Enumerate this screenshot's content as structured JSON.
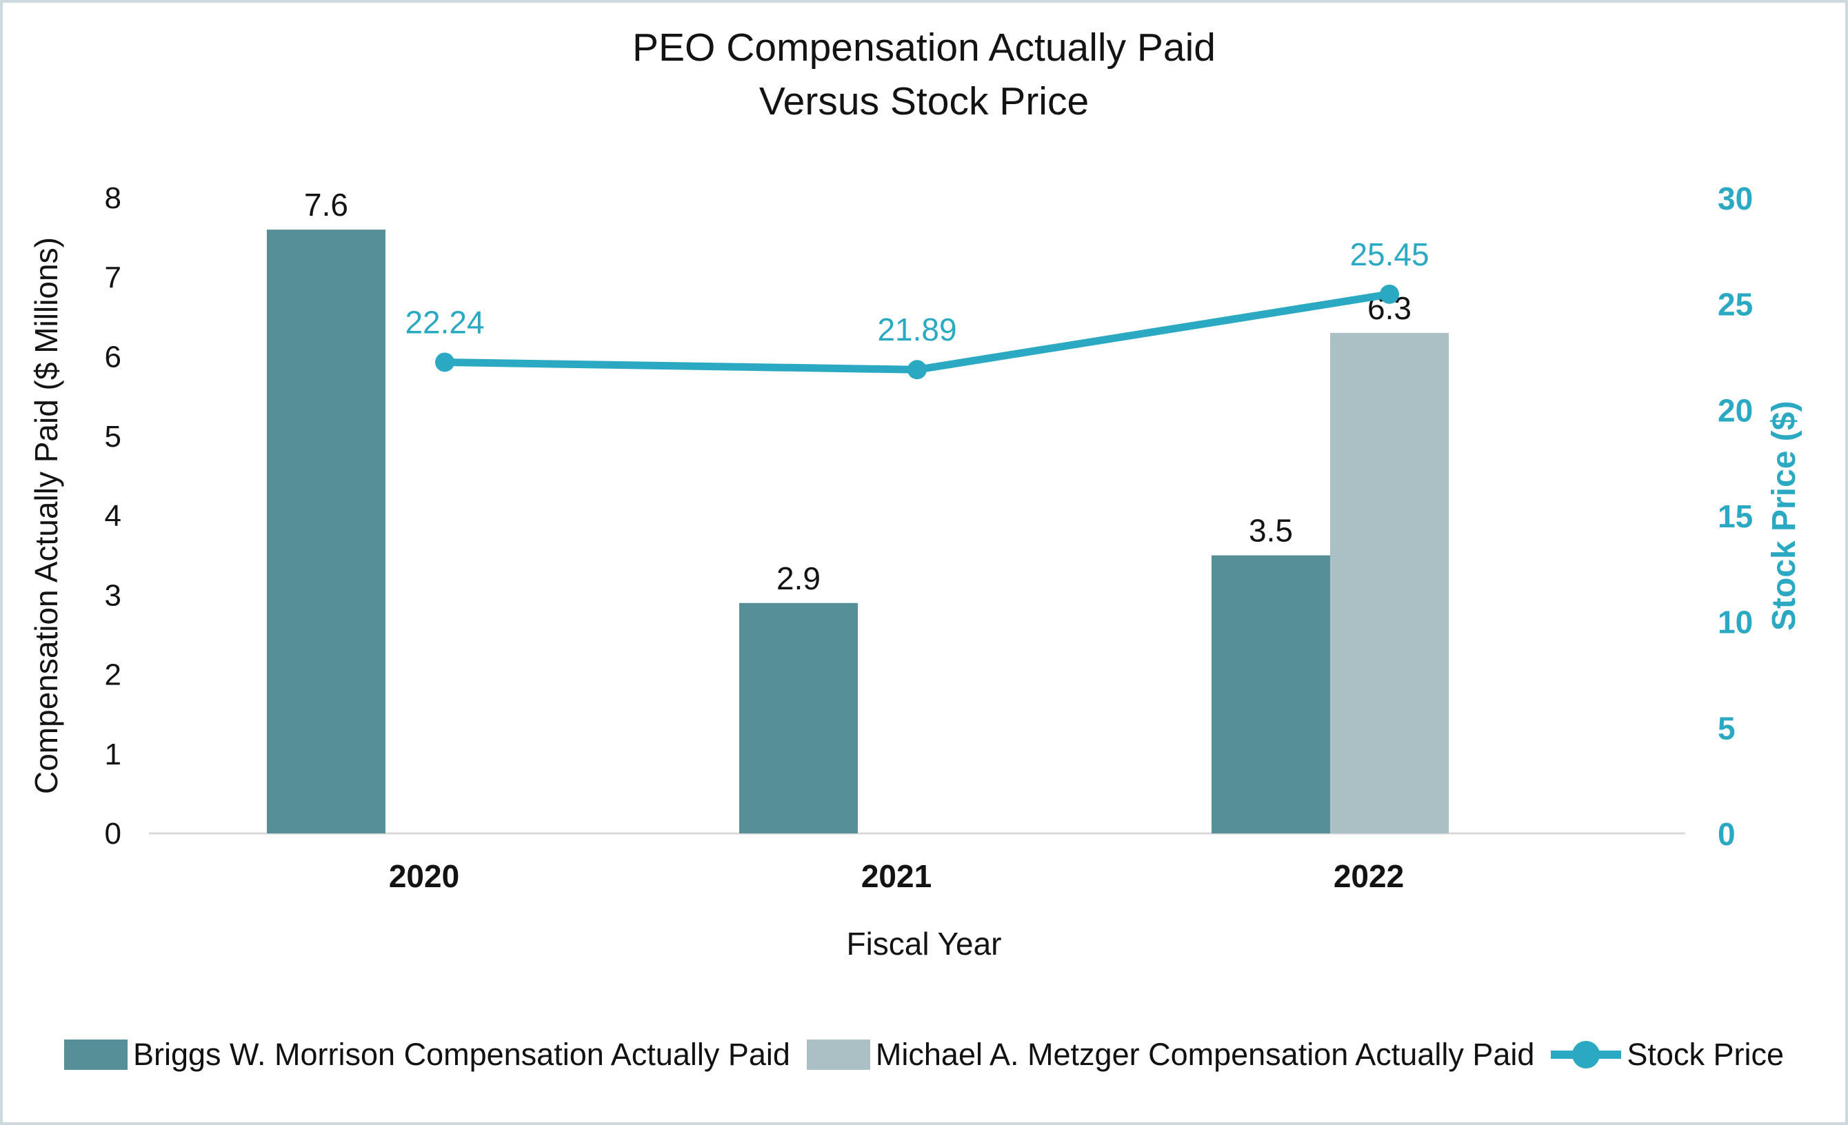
{
  "title": {
    "line1": "PEO Compensation Actually Paid",
    "line2": "Versus Stock Price"
  },
  "chart_data": {
    "type": "combo-bar-line",
    "categories": [
      "2020",
      "2021",
      "2022"
    ],
    "series": [
      {
        "name": "Briggs W. Morrison Compensation Actually Paid",
        "type": "bar",
        "axis": "left",
        "color": "#568F98",
        "values": [
          7.6,
          2.9,
          3.5
        ]
      },
      {
        "name": "Michael A. Metzger Compensation Actually Paid",
        "type": "bar",
        "axis": "left",
        "color": "#ABC0C5",
        "values": [
          null,
          null,
          6.3
        ]
      },
      {
        "name": "Stock Price",
        "type": "line",
        "axis": "right",
        "color": "#2BA9C3",
        "values": [
          22.24,
          21.89,
          25.45
        ]
      }
    ],
    "left_axis": {
      "label": "Compensation Actually Paid ($ Millions)",
      "min": 0,
      "max": 8,
      "ticks": [
        0,
        1,
        2,
        3,
        4,
        5,
        6,
        7,
        8
      ]
    },
    "right_axis": {
      "label": "Stock Price ($)",
      "min": 0,
      "max": 30,
      "ticks": [
        0,
        5,
        10,
        15,
        20,
        25,
        30
      ]
    },
    "xlabel": "Fiscal Year",
    "data_labels": true,
    "grid": false,
    "legend_position": "bottom"
  },
  "colors": {
    "briggs_bar": "#568F98",
    "metzger_bar": "#ABC0C5",
    "stock_teal": "#2BA9C3",
    "axis_line": "#D9D9D9",
    "text": "#131313",
    "page_border": "#CDD9DD"
  }
}
